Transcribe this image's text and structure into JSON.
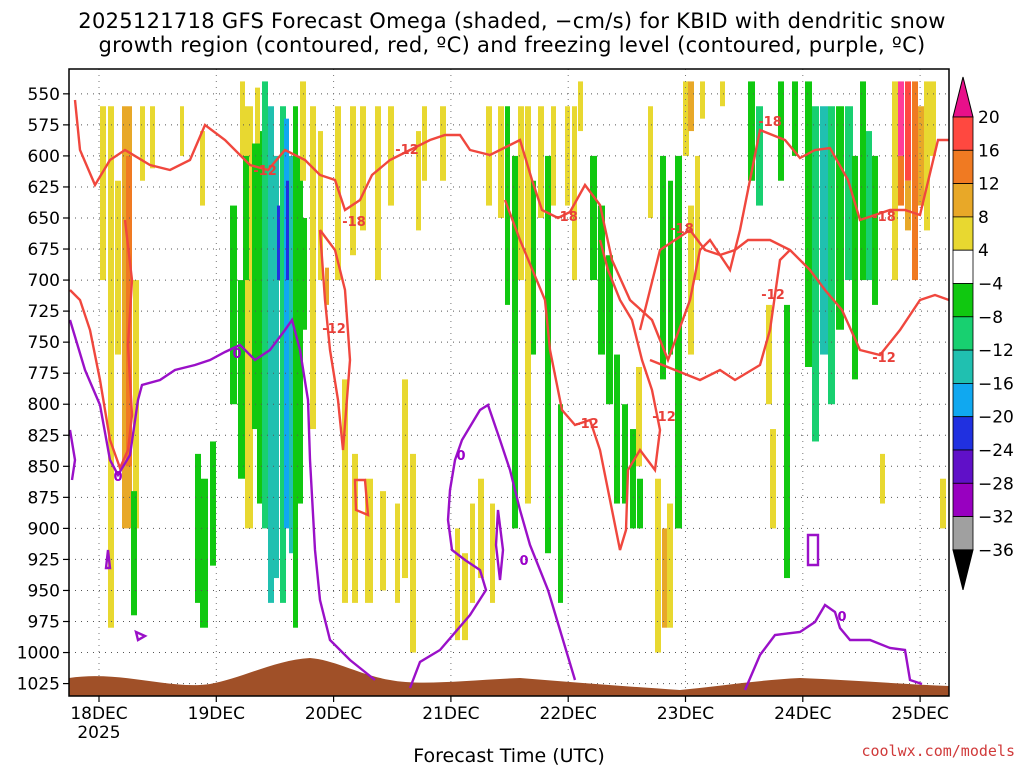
{
  "title_line1": "2025121718 GFS Forecast Omega (shaded, −cm/s) for KBID with dendritic snow",
  "title_line2": "growth region (contoured, red, ºC) and freezing level (contoured, purple, ºC)",
  "chart_data": {
    "type": "heatmap",
    "xlabel": "Forecast Time (UTC)",
    "ylabel": "",
    "x_ticks": [
      "18DEC",
      "19DEC",
      "20DEC",
      "21DEC",
      "22DEC",
      "23DEC",
      "24DEC",
      "25DEC"
    ],
    "x_year": "2025",
    "y_ticks": [
      "550",
      "575",
      "600",
      "625",
      "650",
      "675",
      "700",
      "725",
      "750",
      "775",
      "800",
      "825",
      "850",
      "875",
      "900",
      "925",
      "950",
      "975",
      "1000",
      "1025"
    ],
    "ylim": [
      530,
      1035
    ],
    "y_axis_inverted": true,
    "colorbar_labels": [
      "20",
      "16",
      "12",
      "8",
      "4",
      "−4",
      "−8",
      "−12",
      "−16",
      "−20",
      "−24",
      "−28",
      "−32",
      "−36"
    ],
    "colorbar_colors": [
      "#ff3d98",
      "#ff4840",
      "#f07a22",
      "#e8a828",
      "#e8d830",
      "#ffffff",
      "#10c810",
      "#18d070",
      "#20c0b0",
      "#10a8f0",
      "#2030e0",
      "#6010c8",
      "#9800c0",
      "#a0a0a0"
    ],
    "colorbar_top_arrow_color": "#e8108a",
    "colorbar_bottom_arrow_color": "#000000",
    "contour_labels": {
      "dendritic": [
        "-12",
        "-18"
      ],
      "freezing": [
        "0"
      ]
    },
    "colors": {
      "dendritic_contour": "#f0473e",
      "freezing_contour": "#9a10c8",
      "terrain": "#a05028"
    }
  },
  "credit": "coolwx.com/models"
}
